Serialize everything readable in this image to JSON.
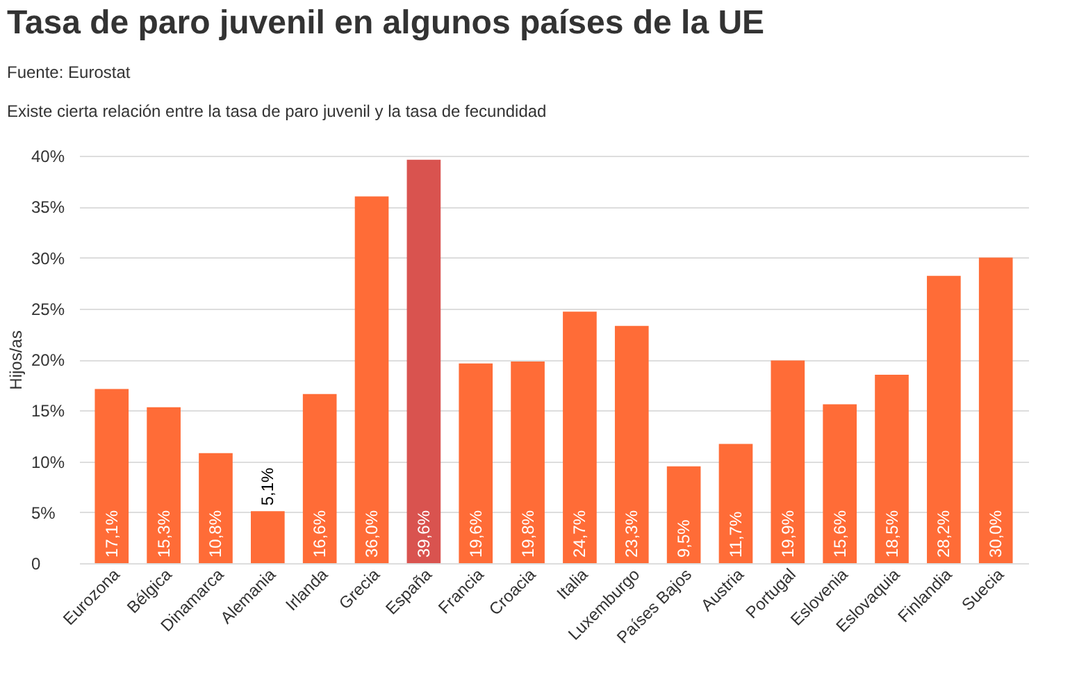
{
  "chart_data": {
    "type": "bar",
    "title": "Tasa de paro juvenil en algunos países de la UE",
    "subtitle": "Existe cierta relación entre la tasa de paro juvenil y la tasa de fecundidad",
    "annotations": [
      "Fuente: Eurostat"
    ],
    "ylabel": "Hijos/as",
    "categories": [
      "Eurozona",
      "Bélgica",
      "Dinamarca",
      "Alemania",
      "Irlanda",
      "Grecia",
      "España",
      "Francia",
      "Croacia",
      "Italia",
      "Luxemburgo",
      "Países Bajos",
      "Austria",
      "Portugal",
      "Eslovenia",
      "Eslovaquia",
      "Finlandia",
      "Suecia"
    ],
    "values": [
      17.1,
      15.3,
      10.8,
      5.1,
      16.6,
      36.0,
      39.6,
      19.6,
      19.8,
      24.7,
      23.3,
      9.5,
      11.7,
      19.9,
      15.6,
      18.5,
      28.2,
      30.0
    ],
    "value_labels": [
      "17,1%",
      "15,3%",
      "10,8%",
      "5,1%",
      "16,6%",
      "36,0%",
      "39,6%",
      "19,6%",
      "19,8%",
      "24,7%",
      "23,3%",
      "9,5%",
      "11,7%",
      "19,9%",
      "15,6%",
      "18,5%",
      "28,2%",
      "30,0%"
    ],
    "colors": [
      "#ff6c37",
      "#ff6c37",
      "#ff6c37",
      "#ff6c37",
      "#ff6c37",
      "#ff6c37",
      "#d9534f",
      "#ff6c37",
      "#ff6c37",
      "#ff6c37",
      "#ff6c37",
      "#ff6c37",
      "#ff6c37",
      "#ff6c37",
      "#ff6c37",
      "#ff6c37",
      "#ff6c37",
      "#ff6c37"
    ],
    "ylim": [
      0,
      40
    ],
    "yticks": [
      0,
      {
        "value": 5,
        "label": "5%"
      },
      {
        "value": 10,
        "label": "10%"
      },
      {
        "value": 15,
        "label": "15%"
      },
      {
        "value": 20,
        "label": "20%"
      },
      {
        "value": 25,
        "label": "25%"
      },
      {
        "value": 30,
        "label": "30%"
      },
      {
        "value": 35,
        "label": "35%"
      },
      {
        "value": 40,
        "label": "40%"
      }
    ],
    "grid": "y"
  }
}
